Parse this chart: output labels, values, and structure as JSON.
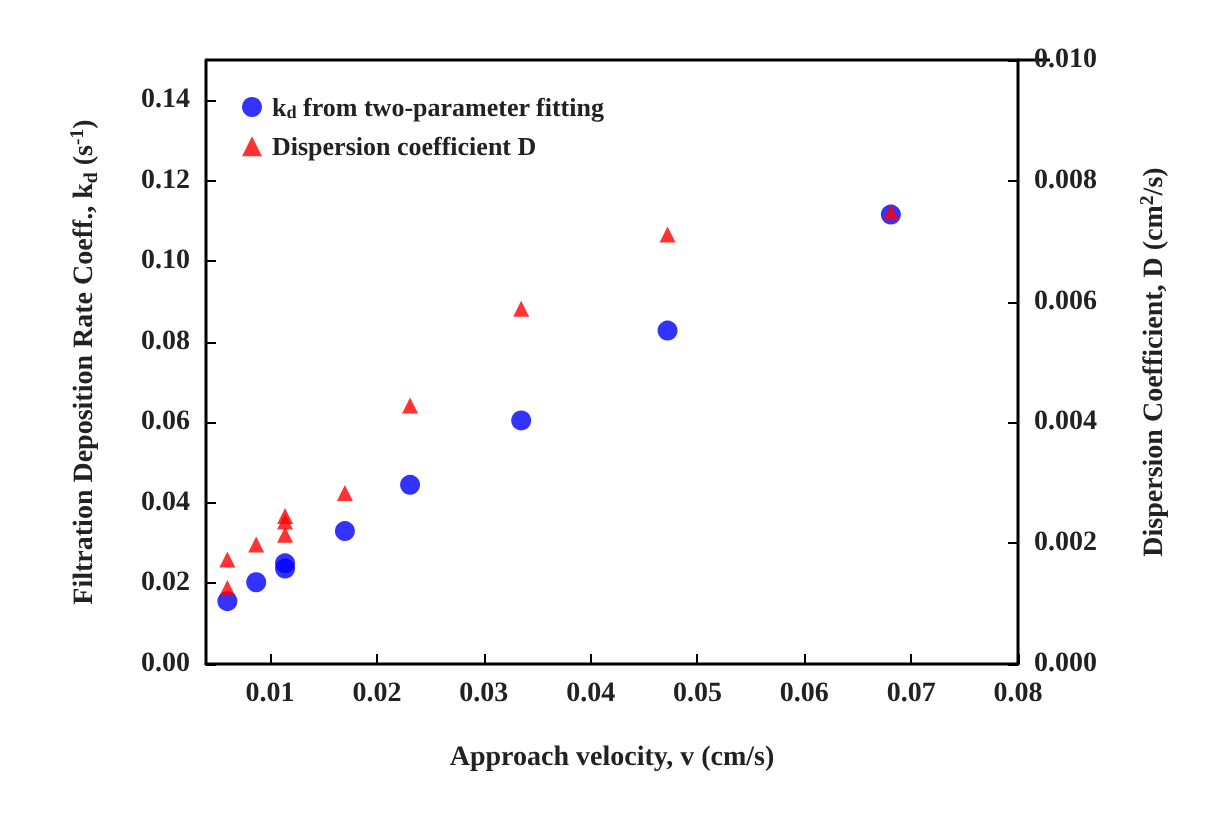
{
  "chart_data": {
    "type": "scatter",
    "xlabel": "Approach velocity, v (cm/s)",
    "ylabel": "Filtration Deposition Rate Coeff., k$_{d}$ (s$^{-1}$)",
    "y2label": "Dispersion Coefficient, D (cm$^{2}$/s)",
    "xlim": [
      0.004,
      0.08
    ],
    "xticks": [
      0.01,
      0.02,
      0.03,
      0.04,
      0.05,
      0.06,
      0.07,
      0.08
    ],
    "ylim": [
      0,
      0.15
    ],
    "yticks": [
      {
        "value": 0,
        "label": "0.00"
      },
      0.02,
      0.04,
      0.06,
      0.08,
      {
        "value": 0.1,
        "label": "0.10"
      },
      0.12,
      0.14
    ],
    "y2lim": [
      0,
      0.01
    ],
    "y2ticks": [
      {
        "value": 0,
        "label": "0.000"
      },
      0.002,
      0.004,
      0.006,
      0.008,
      {
        "value": 0.01,
        "label": "0.010"
      }
    ],
    "legend": "top left",
    "grid": false,
    "series": [
      {
        "name": "k$_{d}$ from two-parameter fitting",
        "color": "#0000ff",
        "marker": "circle",
        "x": [
          0.006,
          0.0087,
          0.0114,
          0.0114,
          0.017,
          0.0231,
          0.0335,
          0.0472,
          0.0681
        ],
        "values": [
          0.0156,
          0.0203,
          0.0237,
          0.025,
          0.033,
          0.0445,
          0.0605,
          0.0828,
          0.1116
        ]
      },
      {
        "name": "Dispersion coefficient D",
        "color": "#ff0000",
        "marker": "triangle",
        "axis": "y2",
        "x": [
          0.006,
          0.006,
          0.0087,
          0.0114,
          0.0114,
          0.0114,
          0.017,
          0.0231,
          0.0335,
          0.0472,
          0.0681
        ],
        "values": [
          0.00126,
          0.00173,
          0.00198,
          0.00214,
          0.00236,
          0.00245,
          0.00283,
          0.00428,
          0.00588,
          0.00711,
          0.00748
        ]
      }
    ]
  }
}
